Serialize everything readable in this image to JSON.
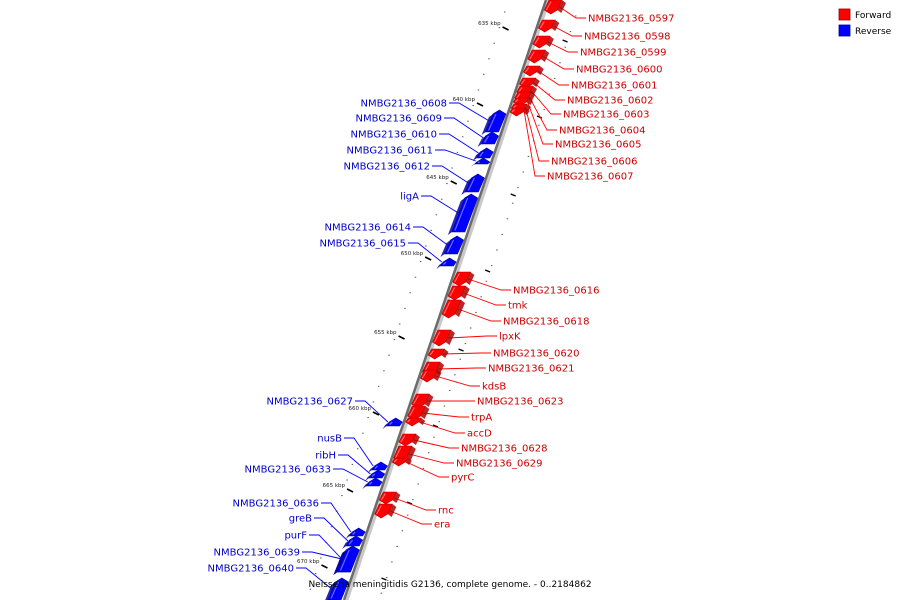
{
  "caption": "Neisseria meningitidis G2136, complete genome. - 0..2184862",
  "legend": [
    {
      "label": "Forward",
      "color": "#ff0000"
    },
    {
      "label": "Reverse",
      "color": "#0000ff"
    }
  ],
  "ticks": [
    "635 kbp",
    "640 kbp",
    "645 kbp",
    "650 kbp",
    "655 kbp",
    "660 kbp",
    "665 kbp",
    "670 kbp"
  ],
  "forward_genes": [
    "NMBG2136_0597",
    "NMBG2136_0598",
    "NMBG2136_0599",
    "NMBG2136_0600",
    "NMBG2136_0601",
    "NMBG2136_0602",
    "NMBG2136_0603",
    "NMBG2136_0604",
    "NMBG2136_0605",
    "NMBG2136_0606",
    "NMBG2136_0607",
    "NMBG2136_0616",
    "tmk",
    "NMBG2136_0618",
    "lpxK",
    "NMBG2136_0620",
    "NMBG2136_0621",
    "kdsB",
    "NMBG2136_0623",
    "trpA",
    "accD",
    "NMBG2136_0628",
    "NMBG2136_0629",
    "pyrC",
    "rnc",
    "era"
  ],
  "reverse_genes": [
    "NMBG2136_0608",
    "NMBG2136_0609",
    "NMBG2136_0610",
    "NMBG2136_0611",
    "NMBG2136_0612",
    "ligA",
    "NMBG2136_0614",
    "NMBG2136_0615",
    "NMBG2136_0627",
    "nusB",
    "ribH",
    "NMBG2136_0633",
    "NMBG2136_0636",
    "greB",
    "purF",
    "NMBG2136_0639",
    "NMBG2136_0640"
  ]
}
